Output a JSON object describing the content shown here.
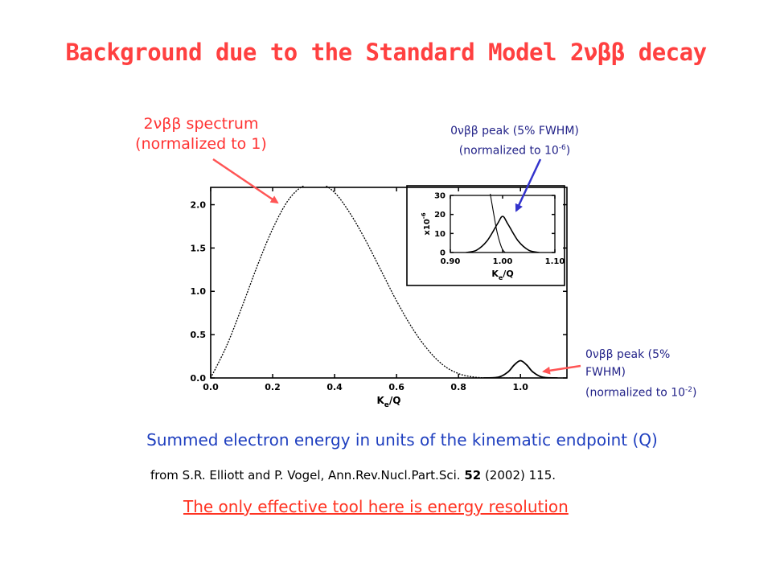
{
  "slide": {
    "title": "Background due to the Standard Model  2νββ decay",
    "labels": {
      "spectrum_line1": "2νββ spectrum",
      "spectrum_line2": "(normalized to 1)",
      "inset_peak_line1": "0νββ peak (5% FWHM)",
      "inset_peak_line2": "(normalized to 10",
      "inset_peak_exp": "-6",
      "inset_peak_close": ")",
      "peak_line1": "0νββ peak (5%",
      "peak_line2": "FWHM)",
      "peak_line3": "(normalized to 10",
      "peak_exp": "-2",
      "peak_close": ")"
    },
    "caption": "Summed electron energy in units of the kinematic endpoint (Q)",
    "citation_prefix": "from S.R. Elliott and P. Vogel, Ann.Rev.Nucl.Part.Sci. ",
    "citation_volume": "52",
    "citation_suffix": " (2002) 115.",
    "conclusion": "The only effective tool here is energy resolution",
    "arrow_colors": {
      "spectrum": "#ff5555",
      "peaks": "#3333cc"
    }
  },
  "chart_data": [
    {
      "type": "line",
      "xlabel": "Ke/Q",
      "ylabel": "",
      "xlim": [
        0.0,
        1.15
      ],
      "ylim": [
        0.0,
        2.2
      ],
      "x_ticks": [
        "0.0",
        "0.2",
        "0.4",
        "0.6",
        "0.8",
        "1.0"
      ],
      "y_ticks": [
        "0.0",
        "0.5",
        "1.0",
        "1.5",
        "2.0"
      ],
      "series": [
        {
          "x": [
            0.0,
            0.05,
            0.1,
            0.15,
            0.2,
            0.25,
            0.3,
            0.35,
            0.4,
            0.45,
            0.5,
            0.55,
            0.6,
            0.65,
            0.7,
            0.75,
            0.8,
            0.85,
            0.9,
            0.95,
            1.0
          ],
          "y": [
            0.0,
            0.36,
            0.81,
            1.29,
            1.72,
            2.05,
            2.22,
            2.25,
            2.14,
            1.9,
            1.59,
            1.24,
            0.89,
            0.58,
            0.33,
            0.15,
            0.05,
            0.01,
            0.0,
            0.0,
            0.0
          ]
        },
        {
          "x": [
            0.88,
            0.93,
            0.96,
            0.98,
            1.0,
            1.02,
            1.04,
            1.07,
            1.12
          ],
          "y": [
            0.0,
            0.01,
            0.07,
            0.15,
            0.2,
            0.15,
            0.07,
            0.01,
            0.0
          ]
        }
      ]
    },
    {
      "type": "line",
      "xlabel": "Ke/Q",
      "ylabel": "x10-6",
      "xlim": [
        0.9,
        1.1
      ],
      "ylim": [
        0,
        30
      ],
      "x_ticks": [
        "0.90",
        "1.00",
        "1.10"
      ],
      "y_ticks": [
        "0",
        "10",
        "20",
        "30"
      ],
      "series": [
        {
          "x": [
            0.975,
            0.98,
            0.985,
            0.99,
            0.995,
            1.0,
            1.005
          ],
          "y": [
            33,
            25,
            17,
            10,
            5,
            1.5,
            0
          ]
        },
        {
          "x": [
            0.93,
            0.95,
            0.97,
            0.99,
            1.0,
            1.01,
            1.03,
            1.05,
            1.07
          ],
          "y": [
            0,
            1.2,
            6,
            15,
            19,
            15,
            6,
            1.2,
            0
          ]
        }
      ]
    }
  ]
}
